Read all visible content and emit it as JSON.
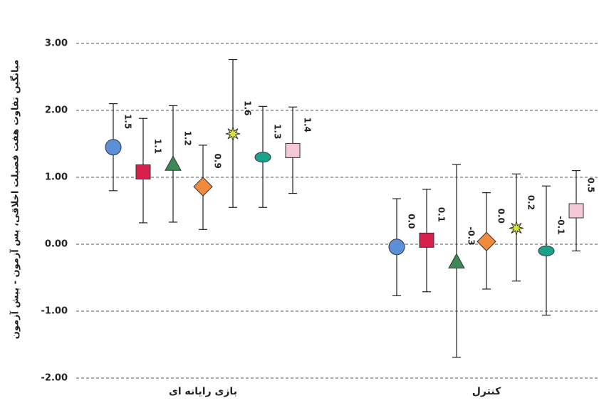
{
  "chart_data": {
    "type": "errorbar",
    "y_label": "میانگین تفاوت هفت فضیلت اخلاقی، پس آزمون - پیش آزمون",
    "categories": [
      "بازی رایانه ای",
      "کنترل"
    ],
    "ylim": [
      -2,
      3.5
    ],
    "yticks": [
      {
        "value": -2,
        "label": "-2.00"
      },
      {
        "value": -1,
        "label": "-1.00"
      },
      {
        "value": 0,
        "label": "0.00"
      },
      {
        "value": 1,
        "label": "1.00"
      },
      {
        "value": 2,
        "label": "2.00"
      },
      {
        "value": 3,
        "label": "3.00"
      }
    ],
    "grid": true,
    "series": [
      {
        "color": "#5b8fd8",
        "marker": "circle",
        "values": [
          1.45,
          -0.04
        ],
        "value_labels": [
          "1.5",
          "0.0"
        ],
        "low": [
          0.8,
          -0.77
        ],
        "high": [
          2.1,
          0.68
        ]
      },
      {
        "color": "#d8204c",
        "marker": "square",
        "values": [
          1.08,
          0.06
        ],
        "value_labels": [
          "1.1",
          "0.1"
        ],
        "low": [
          0.32,
          -0.71
        ],
        "high": [
          1.88,
          0.82
        ]
      },
      {
        "color": "#3b8a55",
        "marker": "triangle",
        "values": [
          1.2,
          -0.26
        ],
        "value_labels": [
          "1.2",
          "-0.3"
        ],
        "low": [
          0.33,
          -1.69
        ],
        "high": [
          2.07,
          1.19
        ]
      },
      {
        "color": "#f08a3c",
        "marker": "diamond",
        "values": [
          0.86,
          0.04
        ],
        "value_labels": [
          "0.9",
          "0.0"
        ],
        "low": [
          0.22,
          -0.67
        ],
        "high": [
          1.48,
          0.77
        ]
      },
      {
        "color": "#d8e43a",
        "marker": "star",
        "values": [
          1.65,
          0.24
        ],
        "value_labels": [
          "1.6",
          "0.2"
        ],
        "low": [
          0.55,
          -0.55
        ],
        "high": [
          2.76,
          1.05
        ]
      },
      {
        "color": "#1aa38a",
        "marker": "ellipse",
        "values": [
          1.3,
          -0.1
        ],
        "value_labels": [
          "1.3",
          "-0.1"
        ],
        "low": [
          0.55,
          -1.06
        ],
        "high": [
          2.06,
          0.87
        ]
      },
      {
        "color": "#f4c8d6",
        "marker": "square",
        "values": [
          1.4,
          0.5
        ],
        "value_labels": [
          "1.4",
          "0.5"
        ],
        "low": [
          0.76,
          -0.1
        ],
        "high": [
          2.05,
          1.1
        ]
      }
    ]
  }
}
